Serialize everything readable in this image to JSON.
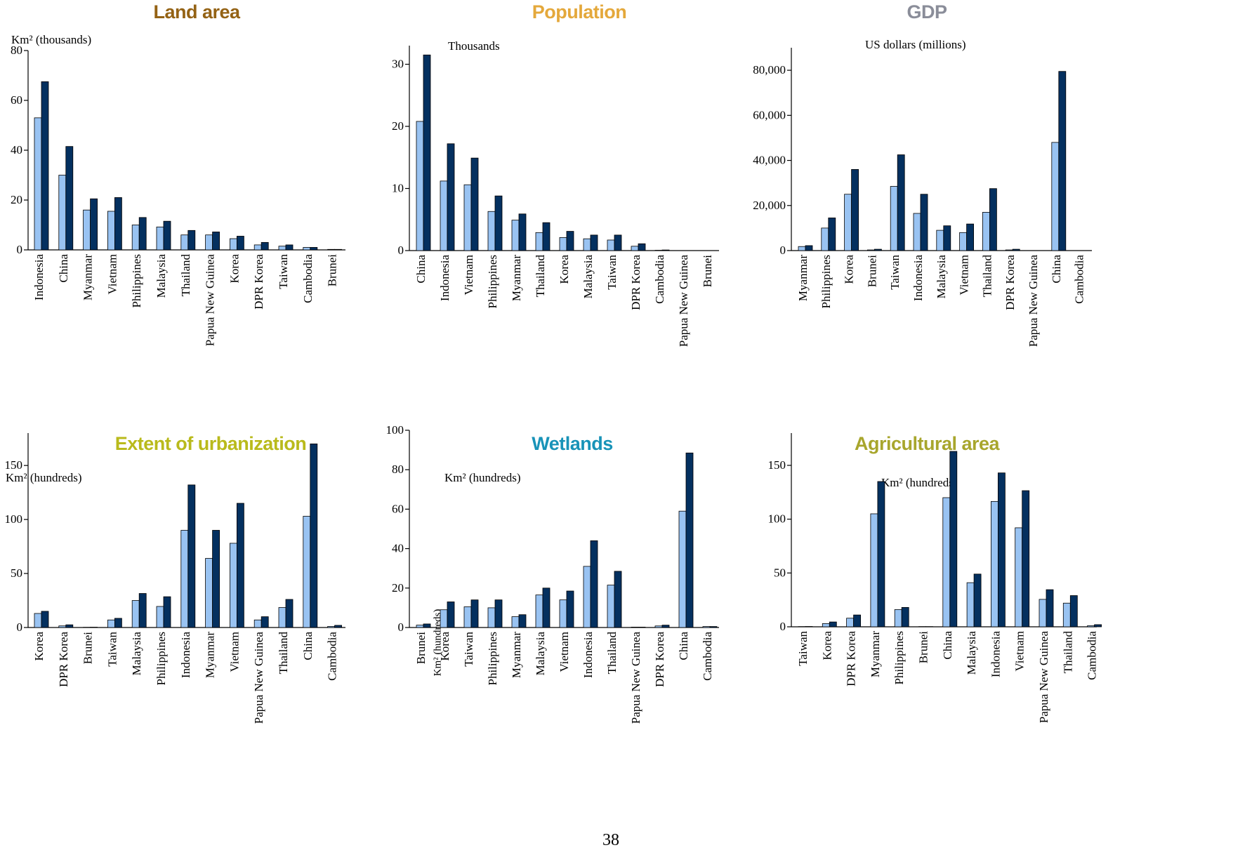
{
  "page_number": "38",
  "colors": {
    "series_light": "#99c3f2",
    "series_dark": "#04305f",
    "outline": "#000000"
  },
  "chart_data": [
    {
      "type": "bar",
      "title": "Land area",
      "title_color": "#946214",
      "unit_label": "Km² (thousands)",
      "ylabel": "",
      "ylim": [
        0,
        80
      ],
      "yticks": [
        "0",
        "20",
        "40",
        "60",
        "80"
      ],
      "ytick_values": [
        0,
        20,
        40,
        60,
        80
      ],
      "categories": [
        "Indonesia",
        "China",
        "Myanmar",
        "Vietnam",
        "Philippines",
        "Malaysia",
        "Thailand",
        "Papua New Guinea",
        "Korea",
        "DPR Korea",
        "Taiwan",
        "Cambodia",
        "Brunei"
      ],
      "series": [
        {
          "values": [
            53,
            30,
            16,
            15.5,
            10,
            9.2,
            6,
            6,
            4.5,
            2,
            1.5,
            1,
            0.2
          ]
        },
        {
          "values": [
            67.5,
            41.5,
            20.5,
            21,
            13,
            11.5,
            7.8,
            7.2,
            5.5,
            3,
            2,
            1,
            0.2
          ]
        }
      ]
    },
    {
      "type": "bar",
      "title": "Population",
      "title_color": "#e4a83b",
      "unit_label": "Thousands",
      "ylabel": "",
      "ylim": [
        0,
        33
      ],
      "yticks": [
        "0",
        "10",
        "20",
        "30"
      ],
      "ytick_values": [
        0,
        10,
        20,
        30
      ],
      "categories": [
        "China",
        "Indonesia",
        "Vietnam",
        "Philippines",
        "Myanmar",
        "Thailand",
        "Korea",
        "Malaysia",
        "Taiwan",
        "DPR Korea",
        "Cambodia",
        "Papua New Guinea",
        "Brunei"
      ],
      "series": [
        {
          "values": [
            20.8,
            11.2,
            10.6,
            6.3,
            4.9,
            2.9,
            2.1,
            1.9,
            1.7,
            0.7,
            0.05,
            0,
            0
          ]
        },
        {
          "values": [
            31.5,
            17.2,
            14.9,
            8.8,
            5.9,
            4.5,
            3.1,
            2.5,
            2.5,
            1.1,
            0.1,
            0,
            0
          ]
        }
      ]
    },
    {
      "type": "bar",
      "title": "GDP",
      "title_color": "#8a8d99",
      "unit_label": "US dollars (millions)",
      "ylabel": "",
      "ylim": [
        0,
        90000
      ],
      "yticks": [
        "0",
        "20,000",
        "40,000",
        "60,000",
        "80,000"
      ],
      "ytick_values": [
        0,
        20000,
        40000,
        60000,
        80000
      ],
      "categories": [
        "Myanmar",
        "Philippines",
        "Korea",
        "Brunei",
        "Taiwan",
        "Indonesia",
        "Malaysia",
        "Vietnam",
        "Thailand",
        "DPR Korea",
        "Papua New Guinea",
        "China",
        "Cambodia"
      ],
      "series": [
        {
          "values": [
            1800,
            10000,
            25000,
            300,
            28500,
            16500,
            9000,
            8000,
            17000,
            300,
            0,
            48000,
            0
          ]
        },
        {
          "values": [
            2200,
            14500,
            36000,
            600,
            42500,
            25000,
            11000,
            11800,
            27500,
            600,
            0,
            79500,
            0
          ]
        }
      ]
    },
    {
      "type": "bar",
      "title": "Extent of urbanization",
      "title_color": "#b9ba1b",
      "unit_label": "Km² (hundreds)",
      "ylabel": "",
      "ylim": [
        0,
        180
      ],
      "yticks": [
        "0",
        "50",
        "100",
        "150"
      ],
      "ytick_values": [
        0,
        50,
        100,
        150
      ],
      "categories": [
        "Korea",
        "DPR Korea",
        "Brunei",
        "Taiwan",
        "Malaysia",
        "Philippines",
        "Indonesia",
        "Myanmar",
        "Vietnam",
        "Papua New Guinea",
        "Thailand",
        "China",
        "Cambodia"
      ],
      "series": [
        {
          "values": [
            13,
            1.5,
            0.2,
            7,
            25,
            19.5,
            90,
            64,
            78,
            7,
            18.5,
            103,
            1
          ]
        },
        {
          "values": [
            15,
            2.5,
            0.3,
            8.5,
            31.5,
            28.5,
            132,
            90,
            115,
            10,
            26,
            170,
            2
          ]
        }
      ]
    },
    {
      "type": "bar",
      "title": "Wetlands",
      "title_color": "#1893b8",
      "unit_label": "Km² (hundreds)",
      "ylabel": "Km² (hundreds)",
      "ylim": [
        0,
        100
      ],
      "yticks": [
        "0",
        "20",
        "40",
        "60",
        "80",
        "100"
      ],
      "ytick_values": [
        0,
        20,
        40,
        60,
        80,
        100
      ],
      "categories": [
        "Brunei",
        "Korea",
        "Taiwan",
        "Philippines",
        "Myanmar",
        "Malaysia",
        "Vietnam",
        "Indonesia",
        "Thailand",
        "Papua New Guinea",
        "DPR Korea",
        "China",
        "Cambodia"
      ],
      "series": [
        {
          "values": [
            1.2,
            9,
            10.5,
            10,
            5.5,
            16.5,
            14,
            31,
            21.5,
            0.2,
            0.8,
            59,
            0.5
          ]
        },
        {
          "values": [
            1.8,
            13,
            14,
            14,
            6.5,
            20,
            18.5,
            44,
            28.5,
            0.2,
            1.2,
            88.5,
            0.5
          ]
        }
      ]
    },
    {
      "type": "bar",
      "title": "Agricultural area",
      "title_color": "#a8a62d",
      "unit_label": "Km² (hundreds)",
      "ylabel": "",
      "ylim": [
        0,
        180
      ],
      "yticks": [
        "0",
        "50",
        "100",
        "150"
      ],
      "ytick_values": [
        0,
        50,
        100,
        150
      ],
      "categories": [
        "Taiwan",
        "Korea",
        "DPR Korea",
        "Myanmar",
        "Philippines",
        "Brunei",
        "China",
        "Malaysia",
        "Indonesia",
        "Vietnam",
        "Papua New Guinea",
        "Thailand",
        "Cambodia"
      ],
      "series": [
        {
          "values": [
            0.2,
            3,
            8,
            105,
            16,
            0.2,
            120,
            41,
            116.5,
            92,
            25.5,
            22,
            1
          ]
        },
        {
          "values": [
            0.3,
            4.5,
            11,
            135,
            18,
            0.2,
            163,
            49,
            143,
            126.5,
            34.5,
            29,
            2
          ]
        }
      ]
    }
  ]
}
